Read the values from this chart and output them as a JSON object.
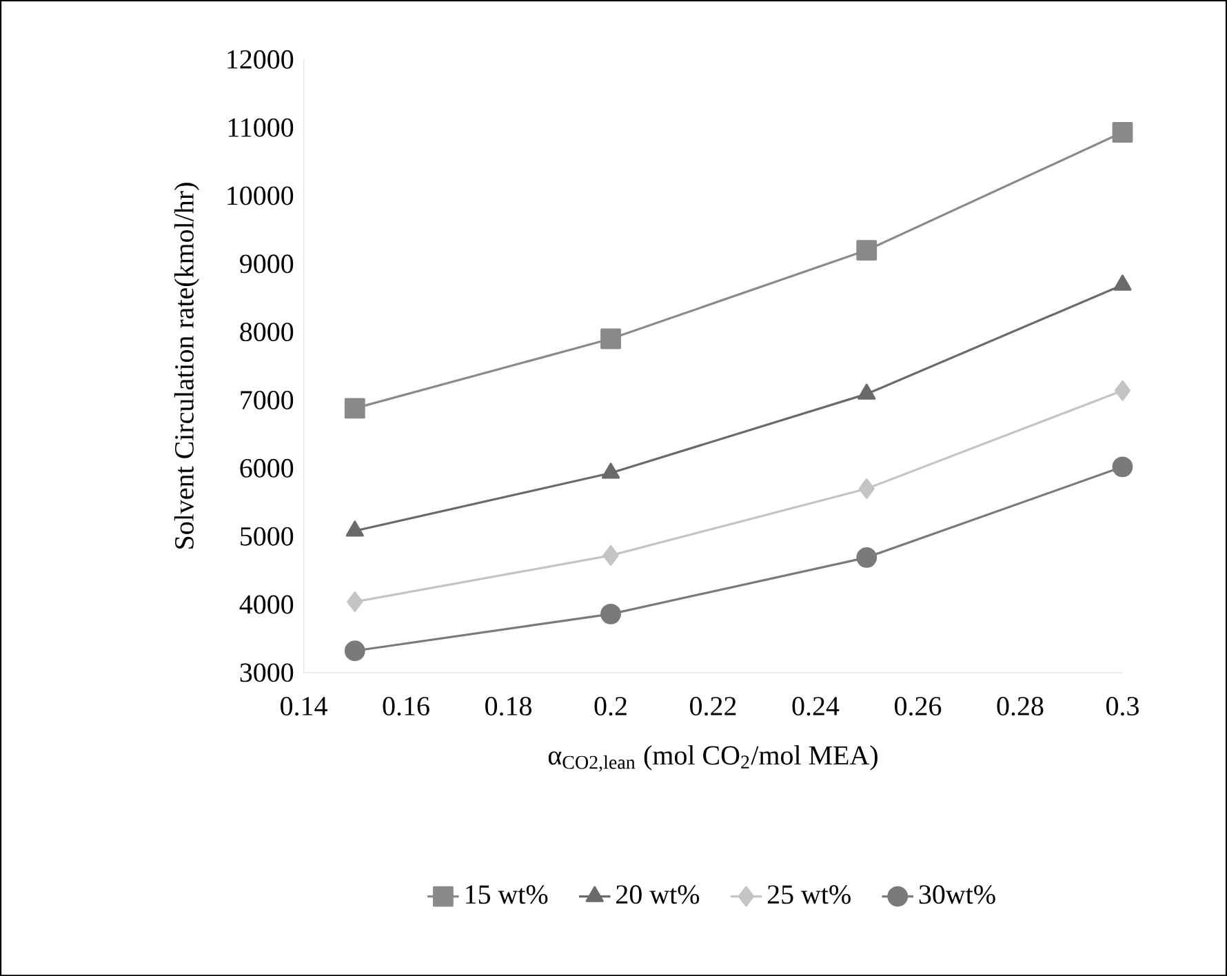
{
  "chart_data": {
    "type": "line",
    "xlabel": "α$_{CO2,lean}$ (mol CO$_{2}$/mol MEA)",
    "ylabel": "Solvent Circulation rate(kmol/hr)",
    "x": [
      0.15,
      0.2,
      0.25,
      0.3
    ],
    "series": [
      {
        "name": "15 wt%",
        "color": "#8a8a8a",
        "marker": "square",
        "values": [
          6880,
          7900,
          9200,
          10930
        ]
      },
      {
        "name": "20 wt%",
        "color": "#6a6a6a",
        "marker": "triangle",
        "values": [
          5080,
          5930,
          7090,
          8690
        ]
      },
      {
        "name": "25 wt%",
        "color": "#c4c4c4",
        "marker": "diamond",
        "values": [
          4040,
          4720,
          5700,
          7140
        ]
      },
      {
        "name": "30wt%",
        "color": "#7a7a7a",
        "marker": "circle",
        "values": [
          3320,
          3860,
          4690,
          6020
        ]
      }
    ],
    "xlim": [
      0.14,
      0.3
    ],
    "ylim": [
      3000,
      12000
    ],
    "xticks": [
      0.14,
      0.16,
      0.18,
      0.2,
      0.22,
      0.24,
      0.26,
      0.28,
      0.3
    ],
    "yticks": [
      3000,
      4000,
      5000,
      6000,
      7000,
      8000,
      9000,
      10000,
      11000,
      12000
    ],
    "legend": "bottom",
    "grid": false,
    "line_style": "solid"
  }
}
